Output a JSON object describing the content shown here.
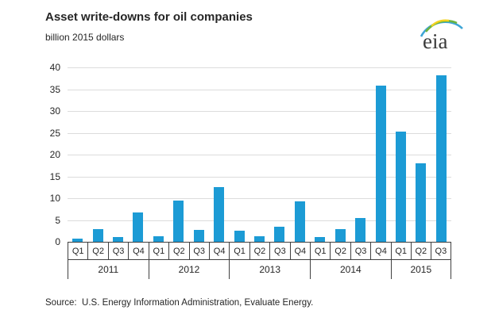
{
  "header": {
    "title": "Asset write-downs for oil companies",
    "subtitle": "billion 2015 dollars"
  },
  "logo": {
    "text": "eia"
  },
  "source_line": "Source:  U.S. Energy Information Administration, Evaluate Energy.",
  "colors": {
    "bar": "#1c9bd5",
    "gridline": "#dcdcdc",
    "axis": "#404040",
    "text": "#262626",
    "logo_blue": "#3ea5d6",
    "logo_green": "#6cb33f",
    "logo_yellow": "#f2d21f"
  },
  "chart_data": {
    "type": "bar",
    "title": "Asset write-downs for oil companies",
    "xlabel": "",
    "ylabel": "billion 2015 dollars",
    "ylim": [
      0,
      40
    ],
    "yticks": [
      0,
      5,
      10,
      15,
      20,
      25,
      30,
      35,
      40
    ],
    "grid": true,
    "legend": false,
    "bar_color": "#1c9bd5",
    "groups": [
      {
        "year": "2011",
        "quarters": [
          "Q1",
          "Q2",
          "Q3",
          "Q4"
        ],
        "values": [
          0.8,
          3.0,
          1.1,
          6.8
        ]
      },
      {
        "year": "2012",
        "quarters": [
          "Q1",
          "Q2",
          "Q3",
          "Q4"
        ],
        "values": [
          1.3,
          9.5,
          2.8,
          12.5
        ]
      },
      {
        "year": "2013",
        "quarters": [
          "Q1",
          "Q2",
          "Q3",
          "Q4"
        ],
        "values": [
          2.5,
          1.2,
          3.5,
          9.2
        ]
      },
      {
        "year": "2014",
        "quarters": [
          "Q1",
          "Q2",
          "Q3",
          "Q4"
        ],
        "values": [
          1.1,
          2.9,
          5.5,
          35.8
        ]
      },
      {
        "year": "2015",
        "quarters": [
          "Q1",
          "Q2",
          "Q3"
        ],
        "values": [
          25.2,
          18.0,
          38.2
        ]
      }
    ]
  }
}
